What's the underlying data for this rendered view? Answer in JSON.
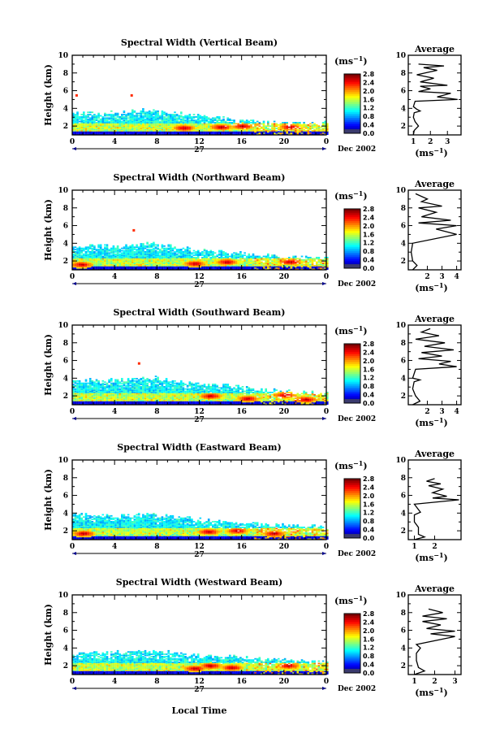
{
  "figure": {
    "x_axis_label": "Local Time",
    "day_label": "27",
    "month_label": "Dec 2002",
    "colorbar_unit": "(ms",
    "colorbar_unit_exp": "−1",
    "avg_title": "Average",
    "avg_xlabel": "(ms",
    "avg_xlabel_exp": "−1",
    "y_label": "Height (km)"
  },
  "chart_data": [
    {
      "type": "heatmap",
      "title": "Spectral Width (Vertical Beam)",
      "ylabel": "Height (km)",
      "xlim": [
        0,
        24
      ],
      "ylim": [
        1,
        10
      ],
      "xticks": [
        "0",
        "4",
        "8",
        "12",
        "16",
        "20",
        "0"
      ],
      "yticks": [
        "2",
        "4",
        "6",
        "8",
        "10"
      ],
      "colorbar": {
        "min": 0.0,
        "max": 2.8,
        "labels": [
          "2.8",
          "2.4",
          "2.0",
          "1.6",
          "1.2",
          "0.8",
          "0.4",
          "0.0"
        ]
      },
      "hot_spots": [
        [
          14.0,
          1.8
        ],
        [
          16.0,
          1.9
        ],
        [
          20.5,
          1.8
        ],
        [
          10.5,
          1.7
        ]
      ],
      "outliers": [
        [
          0.3,
          5.6
        ],
        [
          5.5,
          5.6
        ]
      ],
      "top_edge": [
        [
          0,
          3.3
        ],
        [
          4,
          3.4
        ],
        [
          7,
          3.7
        ],
        [
          12,
          3.1
        ],
        [
          18,
          2.3
        ],
        [
          24,
          2.2
        ]
      ]
    },
    {
      "type": "heatmap",
      "title": "Spectral Width (Northward Beam)",
      "ylabel": "Height (km)",
      "xlim": [
        0,
        24
      ],
      "ylim": [
        1,
        10
      ],
      "xticks": [
        "0",
        "4",
        "8",
        "12",
        "16",
        "20",
        "0"
      ],
      "yticks": [
        "2",
        "4",
        "6",
        "8",
        "10"
      ],
      "colorbar": {
        "min": 0.0,
        "max": 2.8,
        "labels": [
          "2.8",
          "2.4",
          "2.0",
          "1.6",
          "1.2",
          "0.8",
          "0.4",
          "0.0"
        ]
      },
      "hot_spots": [
        [
          0.8,
          1.5
        ],
        [
          11.5,
          1.6
        ],
        [
          14.5,
          1.8
        ],
        [
          20.5,
          1.8
        ]
      ],
      "outliers": [
        [
          5.7,
          5.6
        ]
      ],
      "top_edge": [
        [
          0,
          3.6
        ],
        [
          4,
          3.5
        ],
        [
          7,
          3.9
        ],
        [
          12,
          3.1
        ],
        [
          18,
          2.5
        ],
        [
          24,
          2.2
        ]
      ]
    },
    {
      "type": "heatmap",
      "title": "Spectral Width (Southward Beam)",
      "ylabel": "Height (km)",
      "xlim": [
        0,
        24
      ],
      "ylim": [
        1,
        10
      ],
      "xticks": [
        "0",
        "4",
        "8",
        "12",
        "16",
        "20",
        "0"
      ],
      "yticks": [
        "2",
        "4",
        "6",
        "8",
        "10"
      ],
      "colorbar": {
        "min": 0.0,
        "max": 2.8,
        "labels": [
          "2.8",
          "2.4",
          "2.0",
          "1.6",
          "1.2",
          "0.8",
          "0.4",
          "0.0"
        ]
      },
      "hot_spots": [
        [
          13.0,
          1.9
        ],
        [
          20.0,
          2.0
        ],
        [
          16.5,
          1.6
        ],
        [
          22.0,
          1.5
        ]
      ],
      "outliers": [
        [
          6.2,
          5.8
        ]
      ],
      "top_edge": [
        [
          0,
          3.6
        ],
        [
          4,
          3.7
        ],
        [
          7,
          4.0
        ],
        [
          12,
          3.3
        ],
        [
          18,
          2.6
        ],
        [
          24,
          2.2
        ]
      ]
    },
    {
      "type": "heatmap",
      "title": "Spectral Width (Eastward Beam)",
      "ylabel": "Height (km)",
      "xlim": [
        0,
        24
      ],
      "ylim": [
        1,
        10
      ],
      "xticks": [
        "0",
        "4",
        "8",
        "12",
        "16",
        "20",
        "0"
      ],
      "yticks": [
        "2",
        "4",
        "6",
        "8",
        "10"
      ],
      "colorbar": {
        "min": 0.0,
        "max": 2.8,
        "labels": [
          "2.8",
          "2.4",
          "2.0",
          "1.6",
          "1.2",
          "0.8",
          "0.4",
          "0.0"
        ]
      },
      "hot_spots": [
        [
          1.0,
          1.6
        ],
        [
          12.8,
          1.8
        ],
        [
          15.5,
          1.9
        ],
        [
          19.0,
          1.6
        ]
      ],
      "outliers": [],
      "top_edge": [
        [
          0,
          3.8
        ],
        [
          4,
          3.5
        ],
        [
          7,
          3.8
        ],
        [
          12,
          3.2
        ],
        [
          18,
          2.6
        ],
        [
          24,
          2.3
        ]
      ]
    },
    {
      "type": "heatmap",
      "title": "Spectral Width (Westward Beam)",
      "ylabel": "Height (km)",
      "xlim": [
        0,
        24
      ],
      "ylim": [
        1,
        10
      ],
      "xticks": [
        "0",
        "4",
        "8",
        "12",
        "16",
        "20",
        "0"
      ],
      "yticks": [
        "2",
        "4",
        "6",
        "8",
        "10"
      ],
      "colorbar": {
        "min": 0.0,
        "max": 2.8,
        "labels": [
          "2.8",
          "2.4",
          "2.0",
          "1.6",
          "1.2",
          "0.8",
          "0.4",
          "0.0"
        ]
      },
      "hot_spots": [
        [
          11.5,
          1.6
        ],
        [
          13.0,
          1.9
        ],
        [
          15.0,
          1.7
        ],
        [
          20.3,
          1.9
        ]
      ],
      "outliers": [],
      "top_edge": [
        [
          0,
          3.2
        ],
        [
          4,
          3.4
        ],
        [
          7,
          3.7
        ],
        [
          12,
          3.1
        ],
        [
          18,
          2.7
        ],
        [
          24,
          2.3
        ]
      ]
    }
  ],
  "averages": [
    {
      "type": "line",
      "title": "Average",
      "xlim": [
        0.7,
        3.8
      ],
      "xticks": [
        1,
        2,
        3
      ],
      "ylim": [
        1,
        10
      ],
      "yticks": [
        "2",
        "4",
        "6",
        "8",
        "10"
      ],
      "profile": [
        [
          1.0,
          1.0
        ],
        [
          1.05,
          1.5
        ],
        [
          1.3,
          2.0
        ],
        [
          1.1,
          2.5
        ],
        [
          1.0,
          3.0
        ],
        [
          1.05,
          3.5
        ],
        [
          1.4,
          3.7
        ],
        [
          1.2,
          3.9
        ],
        [
          1.0,
          4.2
        ],
        [
          1.1,
          4.8
        ],
        [
          3.6,
          5.0
        ],
        [
          2.4,
          5.3
        ],
        [
          3.2,
          5.7
        ],
        [
          1.3,
          5.9
        ],
        [
          2.0,
          6.2
        ],
        [
          1.4,
          6.5
        ],
        [
          3.0,
          6.6
        ],
        [
          1.4,
          7.0
        ],
        [
          2.2,
          7.4
        ],
        [
          1.2,
          7.8
        ],
        [
          2.4,
          8.3
        ],
        [
          1.6,
          8.6
        ],
        [
          2.8,
          8.8
        ],
        [
          1.3,
          9.0
        ]
      ]
    },
    {
      "type": "line",
      "title": "Average",
      "xlim": [
        0.7,
        4.3
      ],
      "xticks": [
        2,
        3,
        4
      ],
      "ylim": [
        1,
        10
      ],
      "yticks": [
        "2",
        "4",
        "6",
        "8",
        "10"
      ],
      "profile": [
        [
          1.0,
          1.0
        ],
        [
          1.3,
          1.5
        ],
        [
          1.0,
          2.0
        ],
        [
          0.9,
          3.0
        ],
        [
          1.0,
          4.0
        ],
        [
          4.0,
          5.0
        ],
        [
          2.6,
          5.6
        ],
        [
          4.0,
          6.0
        ],
        [
          1.4,
          6.3
        ],
        [
          3.6,
          6.6
        ],
        [
          1.6,
          7.0
        ],
        [
          2.6,
          7.5
        ],
        [
          1.4,
          8.0
        ],
        [
          3.0,
          8.2
        ],
        [
          1.6,
          8.7
        ],
        [
          2.0,
          9.0
        ],
        [
          1.2,
          9.6
        ]
      ]
    },
    {
      "type": "line",
      "title": "Average",
      "xlim": [
        0.7,
        4.3
      ],
      "xticks": [
        2,
        3,
        4
      ],
      "ylim": [
        1,
        10
      ],
      "yticks": [
        "2",
        "4",
        "6",
        "8",
        "10"
      ],
      "profile": [
        [
          1.0,
          1.0
        ],
        [
          1.5,
          1.4
        ],
        [
          1.2,
          2.0
        ],
        [
          1.0,
          2.8
        ],
        [
          1.1,
          3.6
        ],
        [
          1.5,
          3.8
        ],
        [
          1.0,
          4.0
        ],
        [
          1.2,
          5.0
        ],
        [
          4.0,
          5.3
        ],
        [
          2.8,
          5.6
        ],
        [
          3.6,
          5.9
        ],
        [
          1.4,
          6.2
        ],
        [
          3.0,
          6.5
        ],
        [
          1.6,
          6.9
        ],
        [
          3.8,
          7.2
        ],
        [
          1.8,
          7.6
        ],
        [
          3.2,
          8.0
        ],
        [
          1.2,
          8.4
        ],
        [
          2.8,
          8.8
        ],
        [
          1.6,
          9.2
        ],
        [
          2.2,
          9.6
        ]
      ]
    },
    {
      "type": "line",
      "title": "Average",
      "xlim": [
        0.7,
        3.3
      ],
      "xticks": [
        1,
        2
      ],
      "ylim": [
        1,
        10
      ],
      "yticks": [
        "2",
        "4",
        "6",
        "8",
        "10"
      ],
      "profile": [
        [
          1.0,
          1.0
        ],
        [
          1.5,
          1.3
        ],
        [
          1.2,
          1.6
        ],
        [
          1.2,
          2.4
        ],
        [
          1.0,
          3.0
        ],
        [
          1.0,
          3.8
        ],
        [
          1.3,
          4.1
        ],
        [
          1.2,
          4.4
        ],
        [
          1.0,
          5.0
        ],
        [
          3.2,
          5.5
        ],
        [
          1.9,
          5.7
        ],
        [
          2.6,
          5.9
        ],
        [
          1.9,
          6.3
        ],
        [
          2.4,
          6.7
        ],
        [
          1.7,
          7.1
        ],
        [
          2.3,
          7.3
        ],
        [
          1.6,
          7.6
        ],
        [
          2.0,
          7.9
        ]
      ]
    },
    {
      "type": "line",
      "title": "Average",
      "xlim": [
        0.7,
        3.3
      ],
      "xticks": [
        1,
        2,
        3
      ],
      "ylim": [
        1,
        10
      ],
      "yticks": [
        "2",
        "4",
        "6",
        "8",
        "10"
      ],
      "profile": [
        [
          1.0,
          1.0
        ],
        [
          1.5,
          1.4
        ],
        [
          1.2,
          1.8
        ],
        [
          1.1,
          2.6
        ],
        [
          1.1,
          3.4
        ],
        [
          1.3,
          4.0
        ],
        [
          1.1,
          4.4
        ],
        [
          3.0,
          5.3
        ],
        [
          1.8,
          5.6
        ],
        [
          3.0,
          5.9
        ],
        [
          1.6,
          6.2
        ],
        [
          2.3,
          6.6
        ],
        [
          1.4,
          7.0
        ],
        [
          2.6,
          7.3
        ],
        [
          1.4,
          7.6
        ],
        [
          2.4,
          8.0
        ],
        [
          1.7,
          8.4
        ]
      ]
    }
  ]
}
